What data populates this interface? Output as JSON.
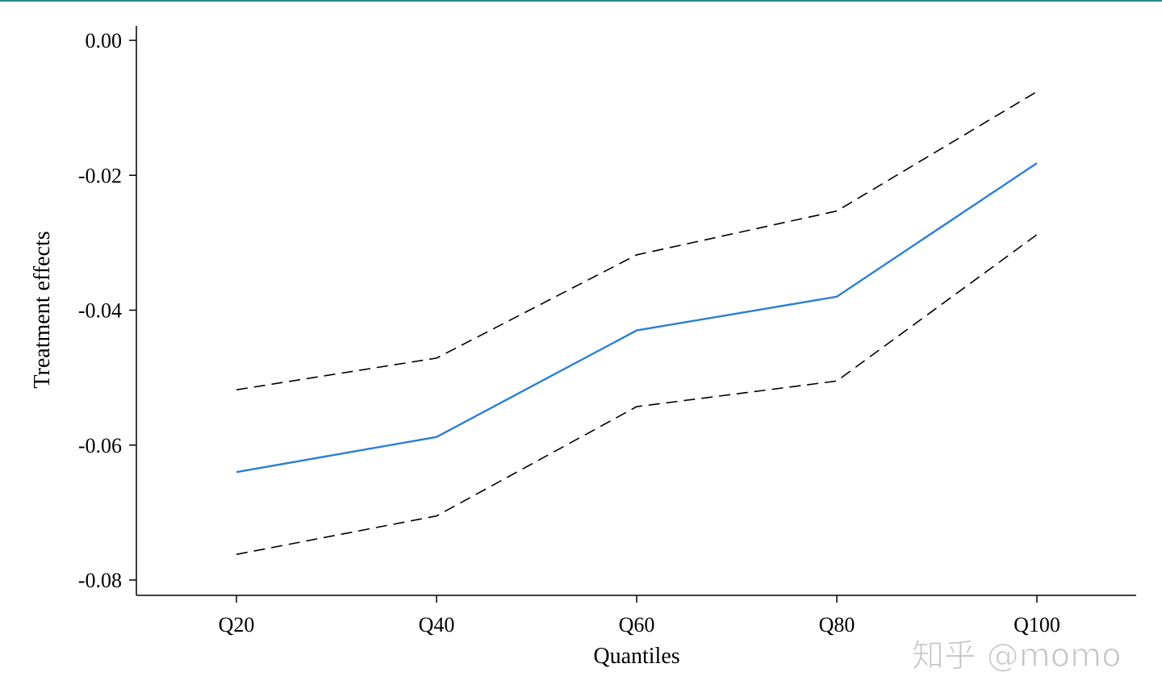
{
  "chart_data": {
    "type": "line",
    "categories": [
      "Q20",
      "Q40",
      "Q60",
      "Q80",
      "Q100"
    ],
    "series": [
      {
        "values": [
          -0.064,
          -0.0588,
          -0.043,
          -0.038,
          -0.0182
        ],
        "color": "#2b7fd4",
        "style": "solid"
      },
      {
        "values": [
          -0.0518,
          -0.0471,
          -0.0318,
          -0.0253,
          -0.0076
        ],
        "color": "#000000",
        "style": "dashed"
      },
      {
        "values": [
          -0.0762,
          -0.0705,
          -0.0543,
          -0.0505,
          -0.0288
        ],
        "color": "#000000",
        "style": "dashed"
      }
    ],
    "xlabel": "Quantiles",
    "ylabel": "Treatment effects",
    "ylim": [
      -0.082,
      0.0022
    ],
    "yticks": [
      0.0,
      -0.02,
      -0.04,
      -0.06,
      -0.08
    ],
    "ytick_labels": [
      "0.00",
      "-0.02",
      "-0.04",
      "-0.06",
      "-0.08"
    ],
    "grid": false,
    "legend": "none"
  },
  "watermark": {
    "text": "知乎 @momo"
  }
}
